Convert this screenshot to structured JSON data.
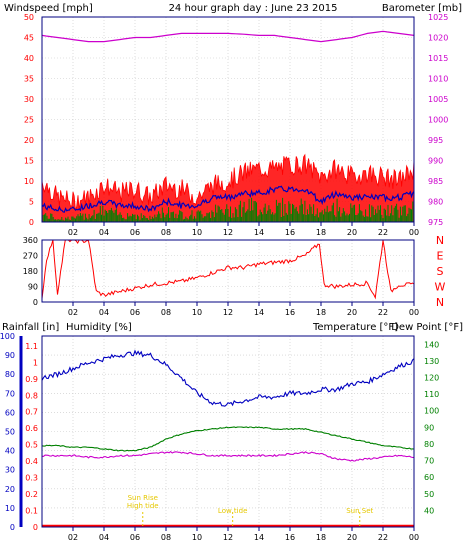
{
  "header": {
    "left_label": "Windspeed [mph]",
    "title": "24 hour graph day : June 23 2015",
    "right_label": "Barometer [mb]"
  },
  "colors": {
    "frame": "#000080",
    "wind": "#ff0000",
    "gust_fill": "#ff0000",
    "avg_wind": "#0000c0",
    "wind_low": "#008000",
    "baro": "#cc00cc",
    "direction": "#ff0000",
    "rain": "#ff0000",
    "humidity": "#0000c0",
    "temperature": "#008000",
    "dewpoint": "#cc00cc",
    "annotation": "#e6c800"
  },
  "x_ticks": [
    "02",
    "04",
    "06",
    "08",
    "10",
    "12",
    "14",
    "16",
    "18",
    "20",
    "22",
    "00"
  ],
  "chart_data": [
    {
      "type": "line",
      "name": "wind-barometer",
      "ylabel": "Windspeed [mph]",
      "y2label": "Barometer [mb]",
      "ylim": [
        0,
        50
      ],
      "y_ticks": [
        0,
        5,
        10,
        15,
        20,
        25,
        30,
        35,
        40,
        45,
        50
      ],
      "y2lim": [
        975,
        1025
      ],
      "y2_ticks": [
        975,
        980,
        985,
        990,
        995,
        1000,
        1005,
        1010,
        1015,
        1020,
        1025
      ],
      "grid": true,
      "x": [
        0,
        1,
        2,
        3,
        4,
        5,
        6,
        7,
        8,
        9,
        10,
        11,
        12,
        13,
        14,
        15,
        16,
        17,
        18,
        19,
        20,
        21,
        22,
        23,
        24
      ],
      "series": [
        {
          "role": "gust",
          "values": [
            10,
            6,
            5,
            6,
            9,
            7,
            8,
            6,
            9,
            8,
            6,
            9,
            10,
            12,
            13,
            13,
            14,
            14,
            11,
            13,
            11,
            12,
            11,
            10,
            13
          ]
        },
        {
          "role": "avg",
          "values": [
            4,
            3,
            3,
            4,
            5,
            4,
            4,
            3,
            5,
            4,
            4,
            6,
            6,
            7,
            7,
            8,
            8,
            8,
            5,
            7,
            6,
            6,
            6,
            6,
            7
          ]
        },
        {
          "role": "low",
          "values": [
            2,
            1,
            1,
            2,
            3,
            2,
            2,
            1,
            3,
            2,
            2,
            3,
            3,
            4,
            4,
            4,
            4,
            4,
            2,
            4,
            3,
            3,
            3,
            3,
            4
          ]
        },
        {
          "role": "baro",
          "values": [
            1020.5,
            1020,
            1019.5,
            1019,
            1019,
            1019.5,
            1020,
            1020,
            1020.5,
            1021,
            1021,
            1021,
            1021,
            1020.8,
            1020.5,
            1020.5,
            1020,
            1019.5,
            1019,
            1019.5,
            1020,
            1021,
            1021.5,
            1021,
            1020.5
          ]
        }
      ]
    },
    {
      "type": "scatter",
      "name": "wind-direction",
      "ylim": [
        0,
        360
      ],
      "y_ticks": [
        0,
        90,
        180,
        270,
        360
      ],
      "direction_labels": [
        "N",
        "W",
        "S",
        "E",
        "N"
      ],
      "x": [
        0,
        0.3,
        0.7,
        1,
        1.5,
        2,
        2.5,
        3,
        3.5,
        4,
        5,
        6,
        7,
        8,
        9,
        10,
        11,
        12,
        13,
        14,
        15,
        16,
        17,
        17.9,
        18.2,
        19,
        20,
        21,
        21.5,
        22,
        22.5,
        23,
        24
      ],
      "values": [
        20,
        250,
        360,
        50,
        360,
        360,
        350,
        360,
        60,
        40,
        60,
        80,
        100,
        110,
        120,
        140,
        170,
        200,
        200,
        220,
        230,
        240,
        270,
        340,
        100,
        90,
        100,
        110,
        30,
        360,
        60,
        100,
        100
      ]
    },
    {
      "type": "line",
      "name": "rain-humidity-temperature",
      "ylabel_rain": "Rainfall [in]",
      "ylabel_hum": "Humidity [%]",
      "ylabel_temp": "Temperature [°F]",
      "ylabel_dew": "Dew Point [°F]",
      "rain_ticks": [
        "0",
        "0.1",
        "0.2",
        "0.3",
        "0.4",
        "0.5",
        "0.6",
        "0.7",
        "0.8",
        "0.9",
        "1",
        "1.1"
      ],
      "humidity_ylim": [
        0,
        100
      ],
      "humidity_ticks": [
        0,
        10,
        20,
        30,
        40,
        50,
        60,
        70,
        80,
        90,
        100
      ],
      "temp_ylim": [
        30,
        145
      ],
      "temp_ticks": [
        40,
        50,
        60,
        70,
        80,
        90,
        100,
        110,
        120,
        130,
        140
      ],
      "x": [
        0,
        1,
        2,
        3,
        4,
        5,
        6,
        7,
        8,
        9,
        10,
        11,
        12,
        13,
        14,
        15,
        16,
        17,
        18,
        19,
        20,
        21,
        22,
        23,
        24
      ],
      "series": [
        {
          "role": "rain",
          "values": [
            0,
            0,
            0,
            0,
            0,
            0,
            0,
            0,
            0,
            0,
            0,
            0,
            0,
            0,
            0,
            0,
            0,
            0,
            0,
            0,
            0,
            0,
            0,
            0,
            0
          ]
        },
        {
          "role": "humidity",
          "values": [
            78,
            80,
            83,
            86,
            88,
            90,
            91,
            90,
            85,
            78,
            70,
            65,
            64,
            66,
            68,
            68,
            70,
            70,
            72,
            72,
            75,
            76,
            80,
            84,
            87
          ]
        },
        {
          "role": "temperature",
          "values": [
            79,
            79,
            78,
            78,
            77,
            76,
            76,
            78,
            83,
            86,
            88,
            89,
            90,
            90,
            90,
            89,
            89,
            89,
            87,
            85,
            83,
            81,
            79,
            78,
            77
          ]
        },
        {
          "role": "dewpoint",
          "values": [
            73,
            73,
            73,
            72,
            72,
            73,
            73,
            74,
            75,
            75,
            74,
            73,
            73,
            73,
            73,
            73,
            74,
            75,
            74,
            71,
            70,
            71,
            72,
            73,
            72
          ]
        }
      ]
    }
  ],
  "annotations": [
    {
      "id": "sunrise",
      "line1": "Sun Rise",
      "line2": "High tide",
      "hour": 6.5
    },
    {
      "id": "lowtide",
      "line1": "Low tide",
      "line2": "",
      "hour": 12.3
    },
    {
      "id": "sunset",
      "line1": "Sun Set",
      "line2": "",
      "hour": 20.5
    }
  ]
}
